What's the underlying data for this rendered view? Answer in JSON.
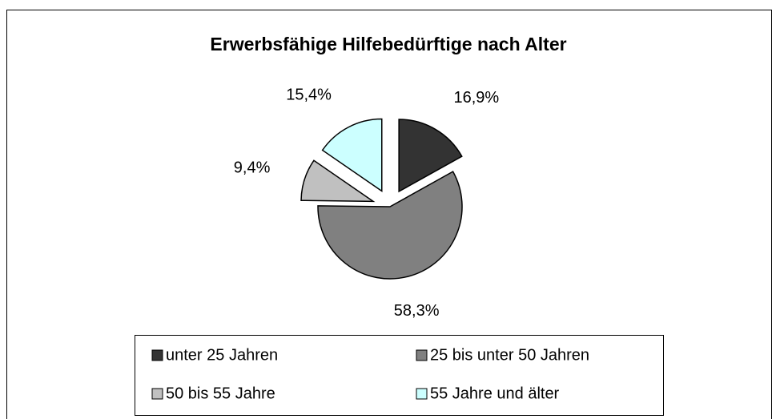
{
  "chart_data": {
    "type": "pie",
    "title": "Erwerbsfähige Hilfebedürftige nach Alter",
    "categories": [
      "unter 25 Jahren",
      "25 bis unter 50 Jahren",
      "50 bis 55 Jahre",
      "55 Jahre und älter"
    ],
    "values": [
      16.9,
      58.3,
      9.4,
      15.4
    ],
    "value_labels": [
      "16,9%",
      "58,3%",
      "9,4%",
      "15,4%"
    ],
    "colors": [
      "#333333",
      "#808080",
      "#c0c0c0",
      "#ccffff"
    ],
    "legend": "bottom"
  }
}
